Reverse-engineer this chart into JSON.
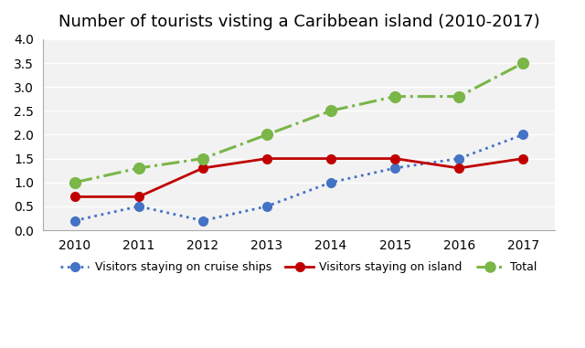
{
  "title": "Number of tourists visting a Caribbean island (2010-2017)",
  "years": [
    2010,
    2011,
    2012,
    2013,
    2014,
    2015,
    2016,
    2017
  ],
  "cruise_ships": [
    0.2,
    0.5,
    0.2,
    0.5,
    1.0,
    1.3,
    1.5,
    2.0
  ],
  "island": [
    0.7,
    0.7,
    1.3,
    1.5,
    1.5,
    1.5,
    1.3,
    1.5
  ],
  "total": [
    1.0,
    1.3,
    1.5,
    2.0,
    2.5,
    2.8,
    2.8,
    3.5
  ],
  "cruise_color": "#4472C4",
  "island_color": "#C00000",
  "total_color": "#7AB648",
  "ylim": [
    0,
    4
  ],
  "yticks": [
    0,
    0.5,
    1.0,
    1.5,
    2.0,
    2.5,
    3.0,
    3.5,
    4.0
  ],
  "background_color": "#ffffff",
  "plot_bg_color": "#f2f2f2",
  "grid_color": "#ffffff",
  "legend_cruise": "Visitors staying on cruise ships",
  "legend_island": "Visitors staying on island",
  "legend_total": "Total",
  "title_fontsize": 13,
  "tick_fontsize": 10,
  "legend_fontsize": 9
}
